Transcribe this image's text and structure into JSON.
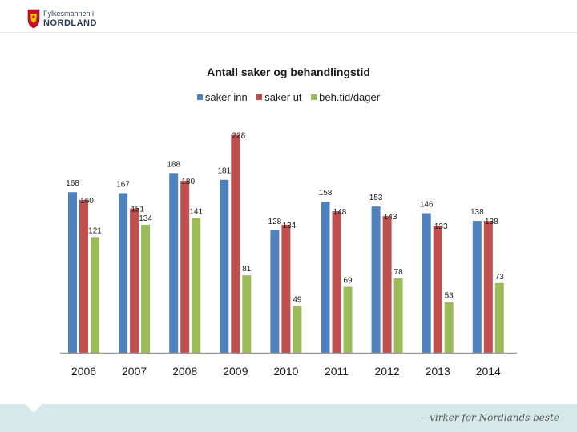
{
  "header": {
    "org_line1": "Fylkesmannen i",
    "org_line2": "NORDLAND",
    "crest_icon": "coat-of-arms-icon"
  },
  "footer": {
    "slogan": "– virker for Nordlands beste"
  },
  "colors": {
    "series": [
      "#4f81bd",
      "#c0504d",
      "#9bbb59"
    ]
  },
  "chart_data": {
    "type": "bar",
    "title": "Antall saker og behandlingstid",
    "xlabel": "",
    "ylabel": "",
    "ylim": [
      0,
      240
    ],
    "grid": false,
    "legend_position": "top-center",
    "categories": [
      "2006",
      "2007",
      "2008",
      "2009",
      "2010",
      "2011",
      "2012",
      "2013",
      "2014"
    ],
    "series": [
      {
        "name": "saker inn",
        "values": [
          168,
          167,
          188,
          181,
          128,
          158,
          153,
          146,
          138
        ]
      },
      {
        "name": "saker ut",
        "values": [
          160,
          151,
          180,
          228,
          134,
          148,
          143,
          133,
          138
        ]
      },
      {
        "name": "beh.tid/dager",
        "values": [
          121,
          134,
          141,
          81,
          49,
          69,
          78,
          53,
          73
        ]
      }
    ]
  }
}
